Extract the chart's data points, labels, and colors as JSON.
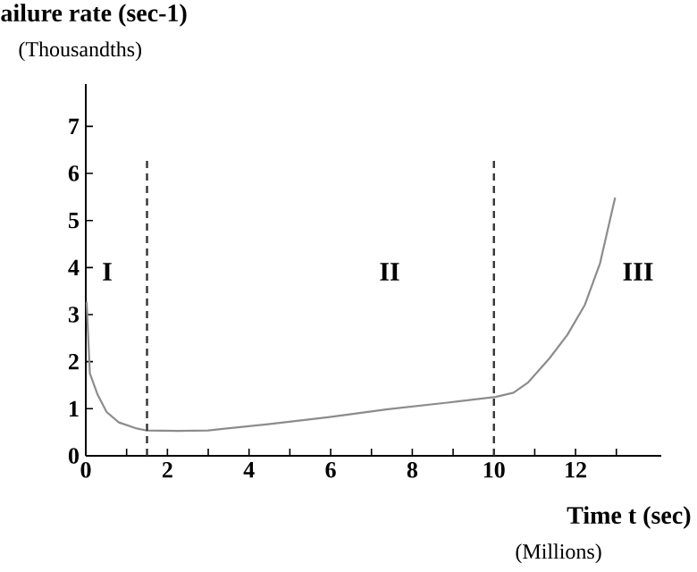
{
  "chart_data": {
    "type": "line",
    "ylabel": "ailure rate  (sec-1)",
    "xlabel": "Time   t (sec)",
    "annotations": [
      "(Thousandths)",
      "(Millions)",
      "I",
      "II",
      "III"
    ],
    "series": [
      {
        "color": "#8c8c8c",
        "x": [
          0.02,
          0.1,
          0.29,
          0.51,
          0.81,
          1.25,
          1.47,
          2.27,
          3.0,
          4.47,
          5.93,
          7.4,
          8.86,
          10.04,
          10.48,
          10.84,
          11.36,
          11.8,
          12.23,
          12.6,
          12.97
        ],
        "values": [
          3.27,
          1.75,
          1.3,
          0.93,
          0.71,
          0.58,
          0.54,
          0.53,
          0.54,
          0.67,
          0.82,
          0.99,
          1.13,
          1.25,
          1.34,
          1.56,
          2.07,
          2.57,
          3.21,
          4.09,
          5.49
        ]
      }
    ],
    "xlim": [
      0,
      14.1
    ],
    "ylim": [
      0,
      7.9
    ],
    "xticks": [
      0,
      {
        "value": 1,
        "label": null
      },
      2,
      {
        "value": 3,
        "label": null
      },
      4,
      {
        "value": 5,
        "label": null
      },
      6,
      {
        "value": 7,
        "label": null
      },
      8,
      {
        "value": 9,
        "label": null
      },
      10,
      {
        "value": 11,
        "label": null
      },
      12,
      {
        "value": 13,
        "label": null
      }
    ],
    "yticks": [
      0,
      1,
      2,
      3,
      4,
      5,
      6,
      7
    ],
    "ref_lines": [
      {
        "axis": "x",
        "value": 1.5,
        "color": "#333333",
        "line_style": "dashed"
      },
      {
        "axis": "x",
        "value": 10,
        "color": "#333333",
        "line_style": "dashed"
      }
    ],
    "grid": false,
    "marker": "none",
    "line_style": "solid"
  }
}
